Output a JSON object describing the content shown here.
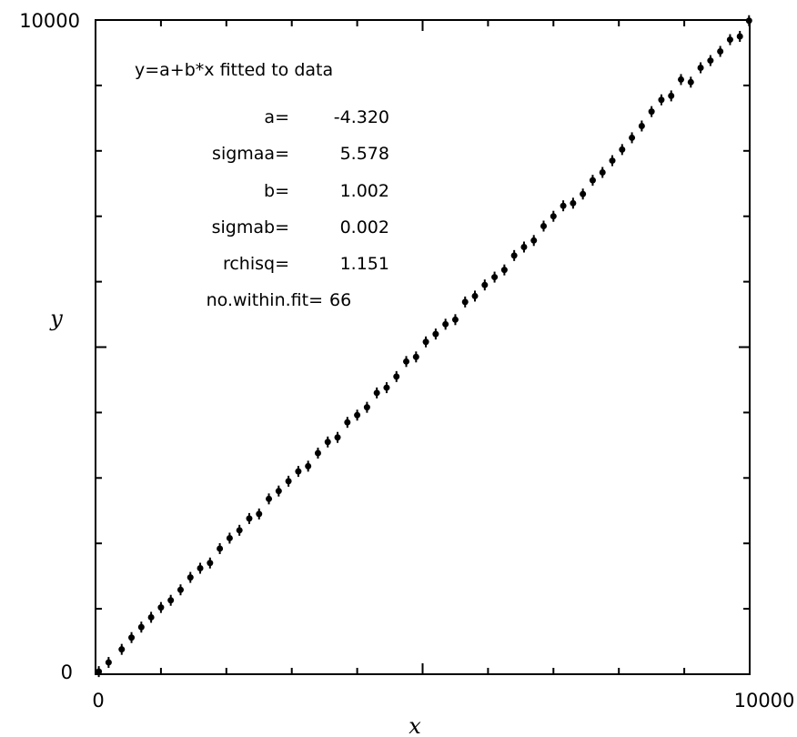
{
  "chart_data": {
    "type": "scatter",
    "title": "",
    "xlabel": "x",
    "ylabel": "y",
    "xlim": [
      0,
      10000
    ],
    "ylim": [
      0,
      10000
    ],
    "x_tick_labels": [
      "0",
      "10000"
    ],
    "y_tick_labels": [
      "0",
      "10000"
    ],
    "grid": false,
    "fit_annotation": {
      "header": "y=a+b*x fitted to data",
      "params": [
        {
          "label": "a=",
          "value": "-4.320"
        },
        {
          "label": "sigmaa=",
          "value": "5.578"
        },
        {
          "label": "b=",
          "value": "1.002"
        },
        {
          "label": "sigmab=",
          "value": "0.002"
        },
        {
          "label": "rchisq=",
          "value": "1.151"
        },
        {
          "label": "no.within.fit=",
          "value": "66"
        }
      ]
    },
    "series": [
      {
        "x": [
          50,
          200,
          400,
          550,
          700,
          850,
          1000,
          1150,
          1300,
          1450,
          1600,
          1750,
          1900,
          2050,
          2200,
          2350,
          2500,
          2650,
          2800,
          2950,
          3100,
          3250,
          3400,
          3550,
          3700,
          3850,
          4000,
          4150,
          4300,
          4450,
          4600,
          4750,
          4900,
          5050,
          5200,
          5350,
          5500,
          5650,
          5800,
          5950,
          6100,
          6250,
          6400,
          6550,
          6700,
          6850,
          7000,
          7150,
          7300,
          7450,
          7600,
          7750,
          7900,
          8050,
          8200,
          8350,
          8500,
          8650,
          8800,
          8950,
          9100,
          9250,
          9400,
          9550,
          9700,
          9850,
          9990
        ],
        "y": [
          40,
          180,
          380,
          560,
          720,
          870,
          1020,
          1130,
          1290,
          1480,
          1620,
          1700,
          1920,
          2080,
          2200,
          2380,
          2450,
          2680,
          2800,
          2950,
          3100,
          3180,
          3380,
          3550,
          3620,
          3850,
          3960,
          4080,
          4300,
          4380,
          4550,
          4780,
          4850,
          5080,
          5200,
          5350,
          5420,
          5690,
          5780,
          5950,
          6070,
          6180,
          6400,
          6530,
          6630,
          6850,
          7000,
          7160,
          7200,
          7340,
          7550,
          7670,
          7850,
          8020,
          8200,
          8380,
          8600,
          8780,
          8840,
          9090,
          9050,
          9270,
          9380,
          9520,
          9700,
          9750,
          9990
        ]
      }
    ]
  }
}
